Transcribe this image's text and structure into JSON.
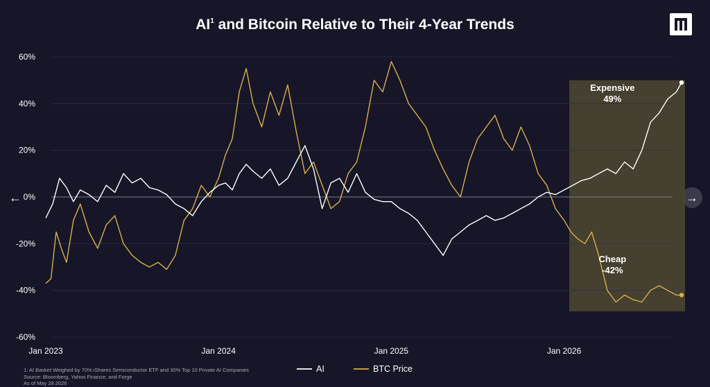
{
  "title": "AI",
  "title_sup": "1",
  "title_rest": "and Bitcoin Relative to Their 4-Year Trends",
  "logo_icon": "pantera-logo-icon",
  "nav": {
    "prev_icon": "arrow-left-icon",
    "next_icon": "arrow-right-icon",
    "prev_glyph": "←",
    "next_glyph": "→"
  },
  "footnote": [
    "1: AI Basket Weighed by 70% iShares Semiconductor ETF and 30% Top 10 Private AI Companies",
    "Source: Bloomberg, Yahoo Finance, and Forge",
    "As of May 28 2026"
  ],
  "colors": {
    "background": "#161628",
    "ai": "#ffffff",
    "btc": "#d9b04a",
    "highlight": "#4a4430"
  },
  "chart_data": {
    "type": "line",
    "title": "AI and Bitcoin Relative to Their 4-Year Trends",
    "xlabel": "",
    "ylabel": "",
    "ylim": [
      -60,
      60
    ],
    "yticks": [
      60,
      40,
      20,
      0,
      -20,
      -40,
      -60
    ],
    "ytick_labels": [
      "60%",
      "40%",
      "20%",
      "0%",
      "-20%",
      "-40%",
      "-60%"
    ],
    "xlim": [
      2023.0,
      2026.7
    ],
    "xticks": [
      2023.0,
      2024.0,
      2025.0,
      2026.0
    ],
    "xtick_labels": [
      "Jan 2023",
      "Jan 2024",
      "Jan 2025",
      "Jan 2026"
    ],
    "grid": "horizontal",
    "legend_position": "bottom-center",
    "highlight_region": {
      "x_start": 2026.03,
      "x_end": 2026.7,
      "y_start": -49,
      "y_end": 50
    },
    "annotations": [
      {
        "lines": [
          "Expensive",
          "49%"
        ],
        "x": 2026.68,
        "y": 49,
        "series": "AI"
      },
      {
        "lines": [
          "Cheap",
          "-42%"
        ],
        "x": 2026.68,
        "y": -42,
        "series": "BTC Price"
      }
    ],
    "series": [
      {
        "name": "AI",
        "x": [
          2023.0,
          2023.04,
          2023.08,
          2023.12,
          2023.16,
          2023.2,
          2023.25,
          2023.3,
          2023.35,
          2023.4,
          2023.45,
          2023.5,
          2023.55,
          2023.6,
          2023.65,
          2023.7,
          2023.75,
          2023.8,
          2023.85,
          2023.9,
          2023.95,
          2024.0,
          2024.04,
          2024.08,
          2024.12,
          2024.16,
          2024.2,
          2024.25,
          2024.3,
          2024.35,
          2024.4,
          2024.45,
          2024.5,
          2024.55,
          2024.6,
          2024.65,
          2024.7,
          2024.75,
          2024.8,
          2024.85,
          2024.9,
          2024.95,
          2025.0,
          2025.05,
          2025.1,
          2025.15,
          2025.2,
          2025.25,
          2025.3,
          2025.35,
          2025.4,
          2025.45,
          2025.5,
          2025.55,
          2025.6,
          2025.65,
          2025.7,
          2025.75,
          2025.8,
          2025.85,
          2025.9,
          2025.95,
          2026.0,
          2026.05,
          2026.1,
          2026.15,
          2026.2,
          2026.25,
          2026.3,
          2026.35,
          2026.4,
          2026.45,
          2026.5,
          2026.55,
          2026.6,
          2026.65,
          2026.68
        ],
        "y": [
          -9,
          -3,
          8,
          4,
          -2,
          3,
          1,
          -2,
          5,
          2,
          10,
          6,
          8,
          4,
          3,
          1,
          -3,
          -5,
          -8,
          -2,
          2,
          5,
          6,
          3,
          10,
          14,
          11,
          8,
          12,
          5,
          8,
          15,
          22,
          12,
          -5,
          6,
          8,
          2,
          10,
          2,
          -1,
          -2,
          -2,
          -5,
          -7,
          -10,
          -15,
          -20,
          -25,
          -18,
          -15,
          -12,
          -10,
          -8,
          -10,
          -9,
          -7,
          -5,
          -3,
          0,
          2,
          1,
          3,
          5,
          7,
          8,
          10,
          12,
          10,
          15,
          12,
          20,
          32,
          36,
          42,
          45,
          49
        ]
      },
      {
        "name": "BTC Price",
        "x": [
          2023.0,
          2023.03,
          2023.06,
          2023.09,
          2023.12,
          2023.16,
          2023.2,
          2023.25,
          2023.3,
          2023.35,
          2023.4,
          2023.45,
          2023.5,
          2023.55,
          2023.6,
          2023.65,
          2023.7,
          2023.75,
          2023.8,
          2023.85,
          2023.9,
          2023.95,
          2024.0,
          2024.04,
          2024.08,
          2024.12,
          2024.16,
          2024.2,
          2024.25,
          2024.3,
          2024.35,
          2024.4,
          2024.45,
          2024.5,
          2024.55,
          2024.6,
          2024.65,
          2024.7,
          2024.75,
          2024.8,
          2024.85,
          2024.9,
          2024.95,
          2025.0,
          2025.05,
          2025.1,
          2025.15,
          2025.2,
          2025.25,
          2025.3,
          2025.35,
          2025.4,
          2025.45,
          2025.5,
          2025.55,
          2025.6,
          2025.65,
          2025.7,
          2025.75,
          2025.8,
          2025.85,
          2025.9,
          2025.95,
          2026.0,
          2026.04,
          2026.08,
          2026.12,
          2026.16,
          2026.2,
          2026.25,
          2026.3,
          2026.35,
          2026.4,
          2026.45,
          2026.5,
          2026.55,
          2026.6,
          2026.65,
          2026.68
        ],
        "y": [
          -37,
          -35,
          -15,
          -22,
          -28,
          -10,
          -3,
          -15,
          -22,
          -12,
          -8,
          -20,
          -25,
          -28,
          -30,
          -28,
          -31,
          -25,
          -10,
          -5,
          5,
          0,
          8,
          18,
          25,
          45,
          55,
          40,
          30,
          45,
          35,
          48,
          28,
          10,
          15,
          5,
          -5,
          -2,
          10,
          15,
          30,
          50,
          45,
          58,
          50,
          40,
          35,
          30,
          20,
          12,
          5,
          0,
          15,
          25,
          30,
          35,
          25,
          20,
          30,
          22,
          10,
          5,
          -5,
          -10,
          -15,
          -18,
          -20,
          -15,
          -25,
          -40,
          -45,
          -42,
          -44,
          -45,
          -40,
          -38,
          -40,
          -42,
          -42
        ]
      }
    ]
  }
}
